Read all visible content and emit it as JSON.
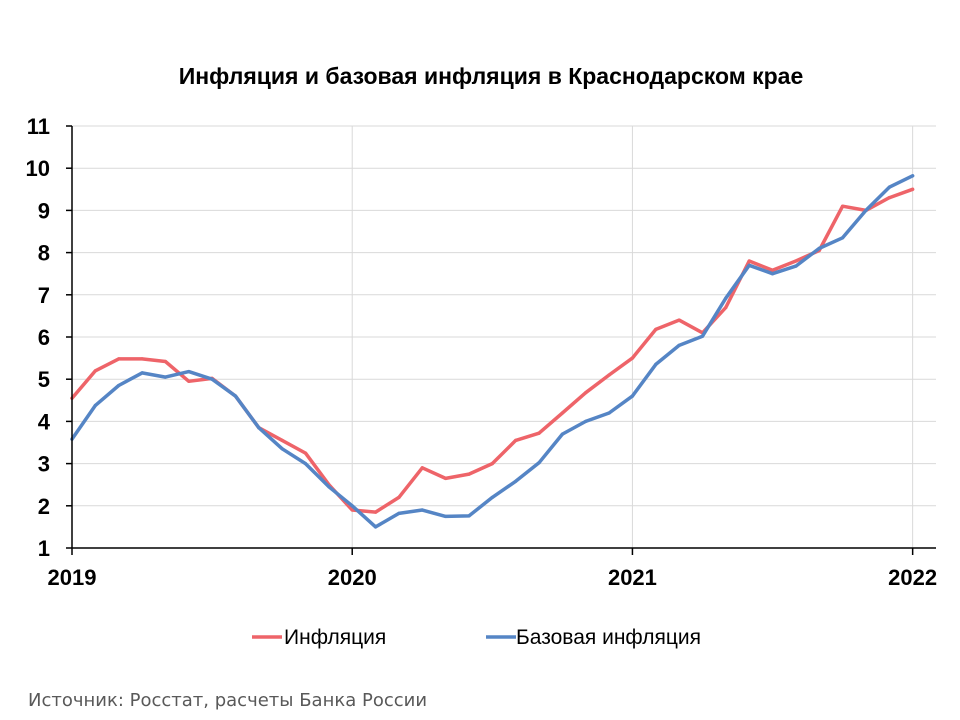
{
  "source": "Источник: Росстат, расчеты Банка России",
  "colors": {
    "inflation": "#EE6469",
    "core": "#5585C5",
    "grid": "#D9D9D9",
    "axis": "#000000"
  },
  "chart_data": {
    "type": "line",
    "title": "Инфляция и базовая инфляция в Краснодарском крае",
    "xlabel": "",
    "ylabel": "",
    "xlim": [
      0,
      37
    ],
    "ylim": [
      1,
      11
    ],
    "yticks": [
      1,
      2,
      3,
      4,
      5,
      6,
      7,
      8,
      9,
      10,
      11
    ],
    "xticks": [
      {
        "label": "2019",
        "pos": 0
      },
      {
        "label": "2020",
        "pos": 12
      },
      {
        "label": "2021",
        "pos": 24
      },
      {
        "label": "2022",
        "pos": 36
      }
    ],
    "grid": true,
    "legend_position": "bottom",
    "x": [
      0,
      1,
      2,
      3,
      4,
      5,
      6,
      7,
      8,
      9,
      10,
      11,
      12,
      13,
      14,
      15,
      16,
      17,
      18,
      19,
      20,
      21,
      22,
      23,
      24,
      25,
      26,
      27,
      28,
      29,
      30,
      31,
      32,
      33,
      34,
      35,
      36
    ],
    "series": [
      {
        "name": "Инфляция",
        "color": "#EE6469",
        "values": [
          4.55,
          5.2,
          5.48,
          5.48,
          5.42,
          4.95,
          5.02,
          4.6,
          3.85,
          3.55,
          3.25,
          2.5,
          1.9,
          1.85,
          2.2,
          2.9,
          2.65,
          2.75,
          3.0,
          3.55,
          3.72,
          4.2,
          4.68,
          5.1,
          5.5,
          6.18,
          6.4,
          6.1,
          6.7,
          7.8,
          7.58,
          7.8,
          8.05,
          9.1,
          9.0,
          9.3,
          9.5
        ]
      },
      {
        "name": "Базовая инфляция",
        "color": "#5585C5",
        "values": [
          3.58,
          4.38,
          4.85,
          5.15,
          5.05,
          5.18,
          5.0,
          4.6,
          3.85,
          3.35,
          3.0,
          2.45,
          2.0,
          1.5,
          1.82,
          1.9,
          1.75,
          1.76,
          2.2,
          2.58,
          3.02,
          3.7,
          4.0,
          4.2,
          4.6,
          5.35,
          5.8,
          6.02,
          6.92,
          7.7,
          7.5,
          7.68,
          8.1,
          8.35,
          9.0,
          9.55,
          9.82
        ]
      }
    ]
  }
}
